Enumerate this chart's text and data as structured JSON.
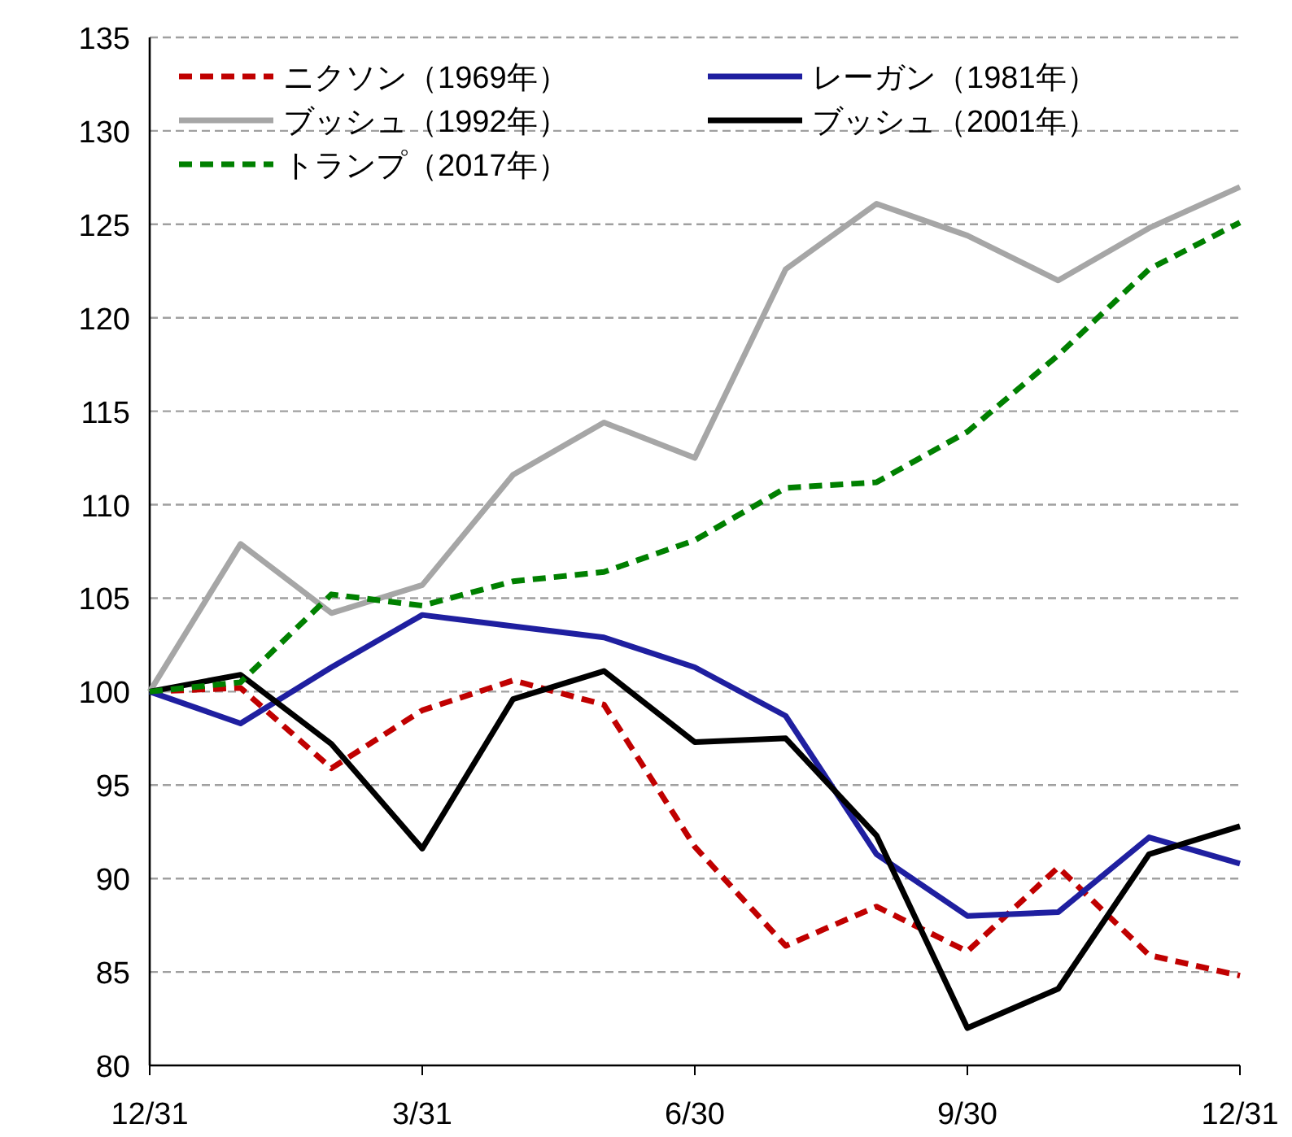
{
  "chart_data": {
    "type": "line",
    "categories": [
      "12/31",
      null,
      null,
      "3/31",
      null,
      null,
      "6/30",
      null,
      null,
      "9/30",
      null,
      null,
      "12/31"
    ],
    "ylim": [
      80,
      135
    ],
    "yticks": [
      80,
      85,
      90,
      95,
      100,
      105,
      110,
      115,
      120,
      125,
      130,
      135
    ],
    "grid": "y",
    "legend": "top left",
    "series": [
      {
        "name": "ニクソン（1969年）",
        "color": "#c00000",
        "line_style": "dashed",
        "values": [
          100,
          100.2,
          95.9,
          99.0,
          100.6,
          99.3,
          91.7,
          86.4,
          88.5,
          86.1,
          90.6,
          85.9,
          84.8
        ]
      },
      {
        "name": "レーガン（1981年）",
        "color": "#1f1fa0",
        "line_style": "solid",
        "values": [
          100,
          98.3,
          101.3,
          104.1,
          103.5,
          102.9,
          101.3,
          98.7,
          91.3,
          88.0,
          88.2,
          92.2,
          90.8
        ]
      },
      {
        "name": "ブッシュ（1992年）",
        "color": "#a6a6a6",
        "line_style": "solid",
        "values": [
          100,
          107.9,
          104.2,
          105.7,
          111.6,
          114.4,
          112.5,
          122.6,
          126.1,
          124.4,
          122.0,
          124.8,
          127.0
        ]
      },
      {
        "name": "ブッシュ（2001年）",
        "color": "#000000",
        "line_style": "solid",
        "values": [
          100,
          100.9,
          97.2,
          91.6,
          99.6,
          101.1,
          97.3,
          97.5,
          92.3,
          82.0,
          84.1,
          91.3,
          92.8
        ]
      },
      {
        "name": "トランプ（2017年）",
        "color": "#008000",
        "line_style": "dashed",
        "values": [
          100,
          100.5,
          105.2,
          104.6,
          105.9,
          106.4,
          108.1,
          110.9,
          111.2,
          113.9,
          118.0,
          122.6,
          125.1
        ]
      }
    ]
  }
}
